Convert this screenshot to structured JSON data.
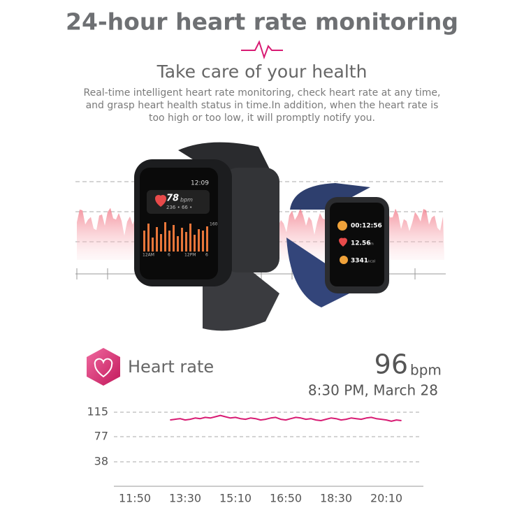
{
  "header": {
    "title": "24-hour heart rate monitoring",
    "subtitle": "Take care of your health",
    "description": [
      "Real-time intelligent heart rate monitoring, check heart rate at any time,",
      "and grasp heart health status in time.In addition, when the heart rate is",
      "too high or too low, it will promptly notify you."
    ]
  },
  "watch_left": {
    "time": "12:09",
    "heart_rate": "78",
    "heart_unit": "bpm",
    "range": "236 • 66 •",
    "scale_max": "160",
    "axis_labels": [
      "12AM",
      "6",
      "12PM",
      "6"
    ]
  },
  "watch_right": {
    "timer": "00:12:56",
    "distance": "12.56",
    "distance_unit": "km",
    "calories": "3341",
    "calories_unit": "kcal"
  },
  "chart_data": {
    "type": "line",
    "title": "Heart rate",
    "reading": 96,
    "reading_unit": "bpm",
    "timestamp": "8:30 PM, March 28",
    "categories": [
      "11:50",
      null,
      null,
      null,
      null,
      null,
      null,
      null,
      null,
      null,
      "13:30",
      null,
      null,
      null,
      null,
      null,
      null,
      null,
      null,
      null,
      "15:10",
      null,
      null,
      null,
      null,
      null,
      null,
      null,
      null,
      null,
      "16:50",
      null,
      null,
      null,
      null,
      null,
      null,
      null,
      null,
      null,
      "18:30",
      null,
      null,
      null,
      null,
      null,
      null,
      null,
      null,
      null,
      "20:10",
      null,
      null,
      null
    ],
    "series": [
      {
        "color": "#d81b73",
        "values": [
          null,
          null,
          null,
          null,
          null,
          null,
          null,
          103,
          104,
          105,
          103,
          104,
          106,
          105,
          107,
          106,
          108,
          110,
          108,
          106,
          107,
          105,
          104,
          106,
          105,
          103,
          104,
          106,
          107,
          104,
          103,
          105,
          107,
          106,
          104,
          105,
          103,
          102,
          104,
          106,
          105,
          103,
          104,
          106,
          105,
          104,
          106,
          107,
          105,
          104,
          103,
          101,
          103,
          102
        ]
      }
    ],
    "ylim": [
      0,
      115
    ],
    "yticks": [
      38,
      77,
      115
    ],
    "grid": true
  }
}
